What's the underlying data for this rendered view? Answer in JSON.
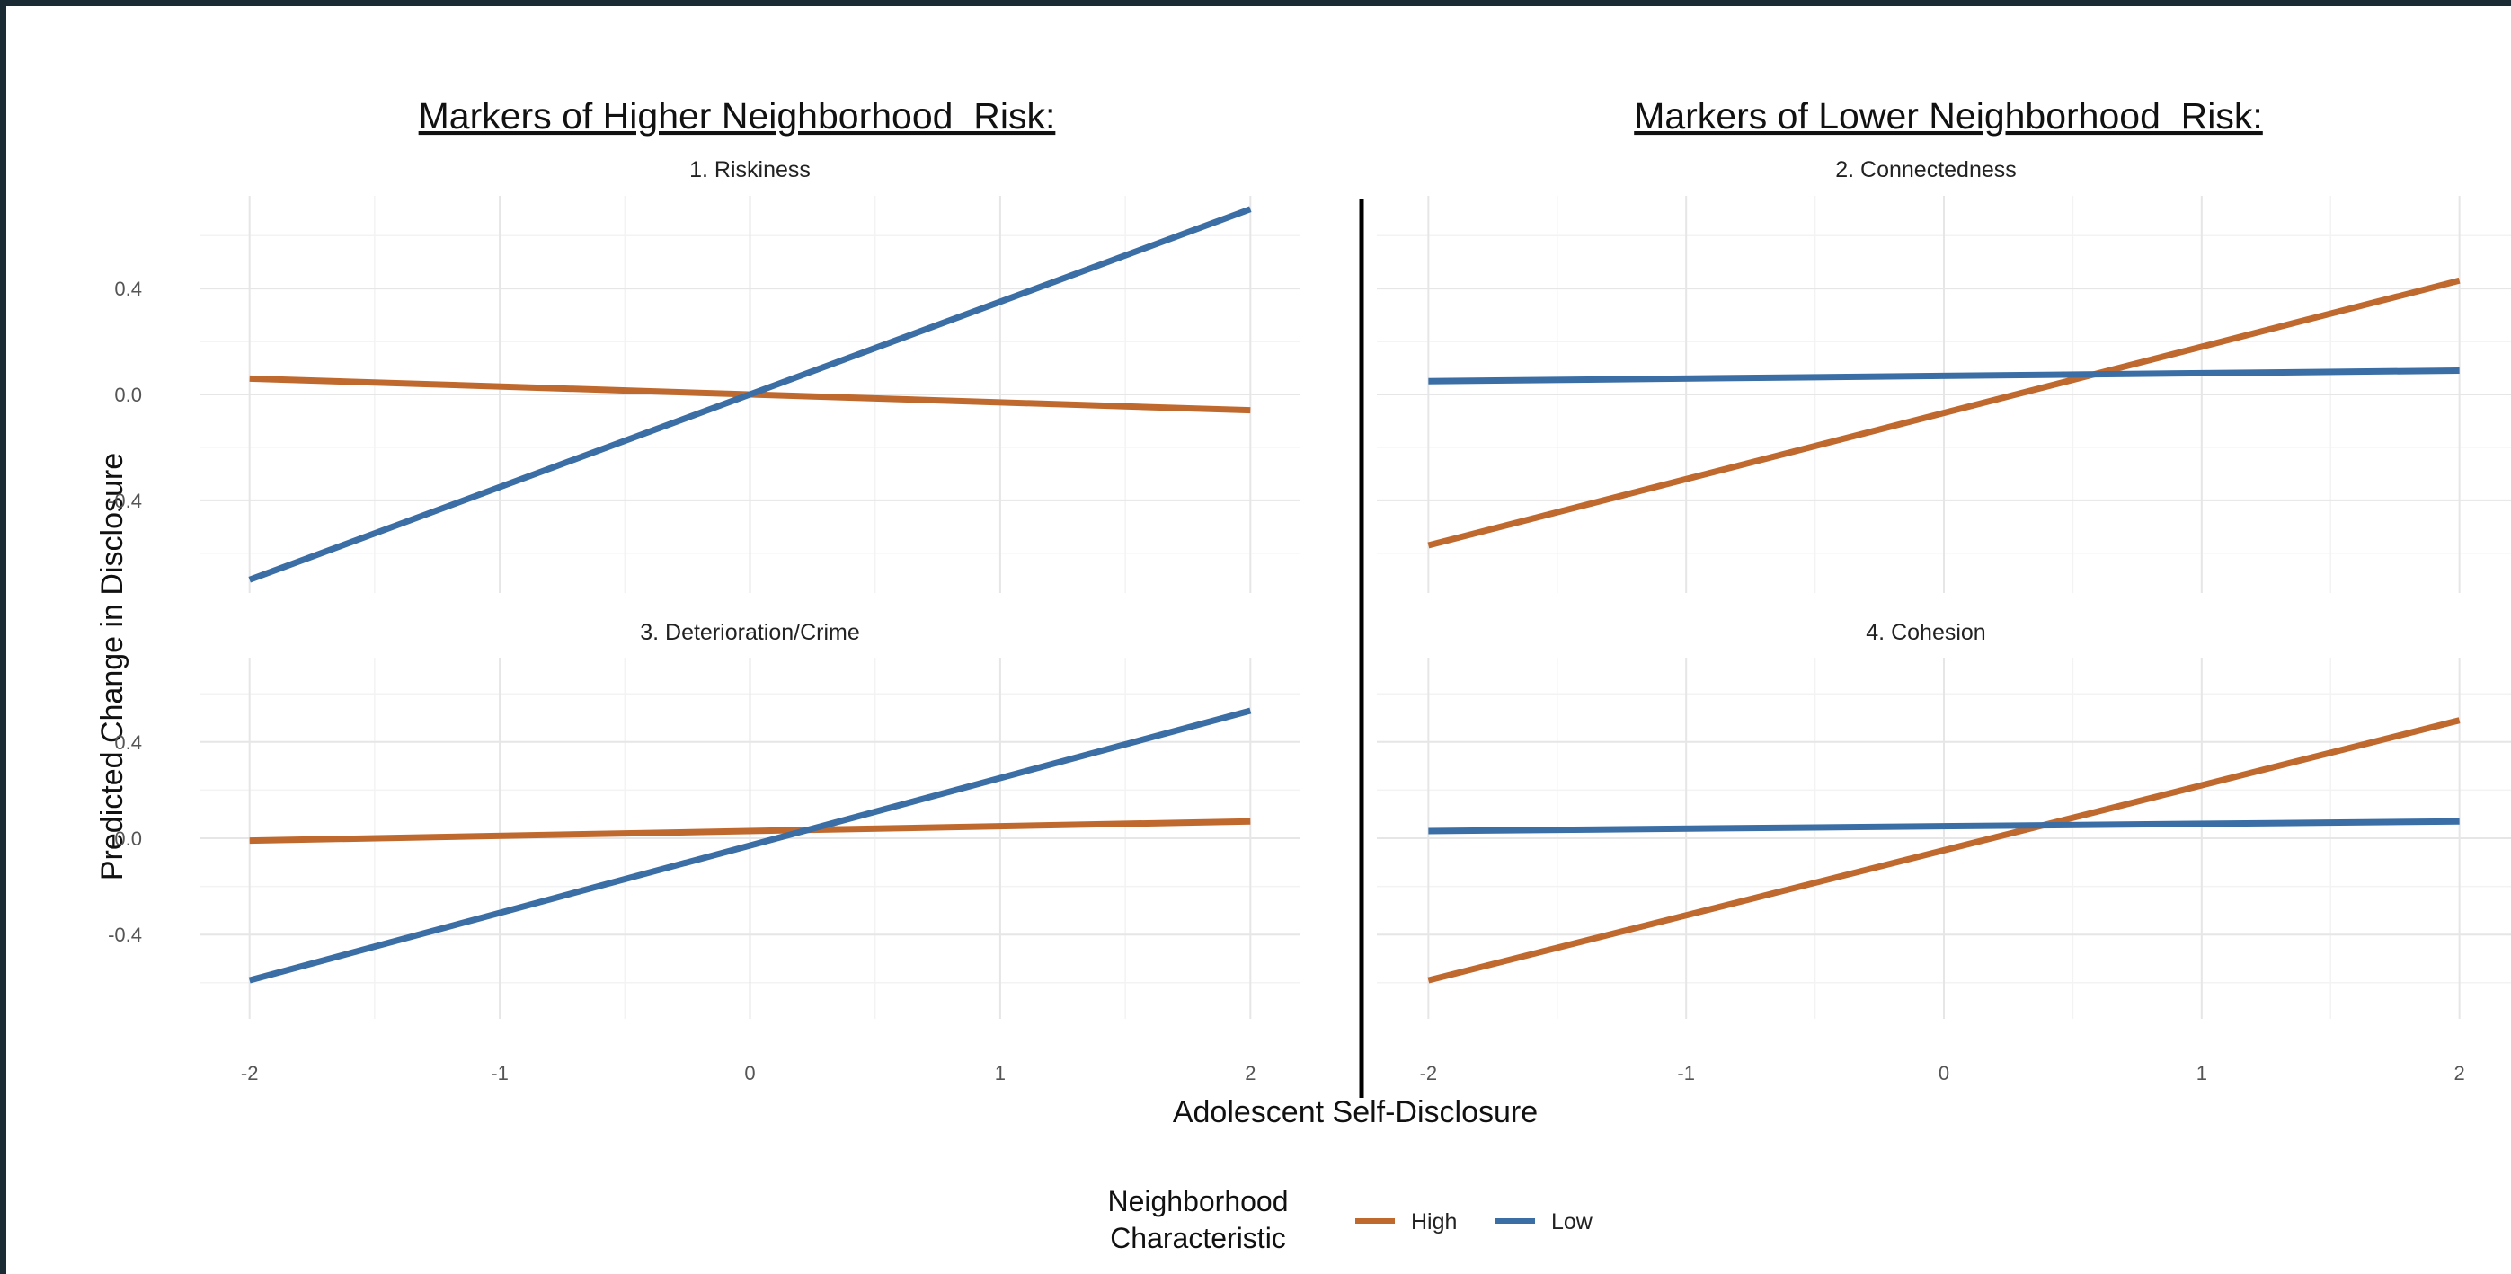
{
  "colors": {
    "High": "#c0692e",
    "Low": "#3a6ea5"
  },
  "group_titles": {
    "left": "Markers of Higher Neighborhood  Risk:",
    "right": "Markers of Lower Neighborhood  Risk:"
  },
  "legend": {
    "title_line1": "Neighborhood",
    "title_line2": "Characteristic",
    "items": [
      "High",
      "Low"
    ]
  },
  "chart_data": [
    {
      "type": "line",
      "title": "1. Riskiness",
      "xlabel": "Adolescent Self-Disclosure",
      "ylabel": "Predicted Change in Disclosure",
      "x": [
        -2,
        2
      ],
      "xticks": [
        -2,
        -1,
        0,
        1,
        2
      ],
      "yticks": [
        -0.4,
        0.0,
        0.4
      ],
      "xlim": [
        -2.2,
        2.2
      ],
      "ylim": [
        -0.75,
        0.75
      ],
      "series": [
        {
          "name": "High",
          "values": [
            0.06,
            -0.06
          ]
        },
        {
          "name": "Low",
          "values": [
            -0.7,
            0.7
          ]
        }
      ]
    },
    {
      "type": "line",
      "title": "2. Connectedness",
      "xlabel": "Adolescent Self-Disclosure",
      "ylabel": "Predicted Change in Disclosure",
      "x": [
        -2,
        2
      ],
      "xticks": [
        -2,
        -1,
        0,
        1,
        2
      ],
      "yticks": [
        -0.4,
        0.0,
        0.4
      ],
      "xlim": [
        -2.2,
        2.2
      ],
      "ylim": [
        -0.75,
        0.75
      ],
      "series": [
        {
          "name": "High",
          "values": [
            -0.57,
            0.43
          ]
        },
        {
          "name": "Low",
          "values": [
            0.05,
            0.09
          ]
        }
      ]
    },
    {
      "type": "line",
      "title": "3. Deterioration/Crime",
      "xlabel": "Adolescent Self-Disclosure",
      "ylabel": "Predicted Change in Disclosure",
      "x": [
        -2,
        2
      ],
      "xticks": [
        -2,
        -1,
        0,
        1,
        2
      ],
      "yticks": [
        -0.4,
        0.0,
        0.4
      ],
      "xlim": [
        -2.2,
        2.2
      ],
      "ylim": [
        -0.75,
        0.75
      ],
      "series": [
        {
          "name": "High",
          "values": [
            -0.01,
            0.07
          ]
        },
        {
          "name": "Low",
          "values": [
            -0.59,
            0.53
          ]
        }
      ]
    },
    {
      "type": "line",
      "title": "4. Cohesion",
      "xlabel": "Adolescent Self-Disclosure",
      "ylabel": "Predicted Change in Disclosure",
      "x": [
        -2,
        2
      ],
      "xticks": [
        -2,
        -1,
        0,
        1,
        2
      ],
      "yticks": [
        -0.4,
        0.0,
        0.4
      ],
      "xlim": [
        -2.2,
        2.2
      ],
      "ylim": [
        -0.75,
        0.75
      ],
      "series": [
        {
          "name": "High",
          "values": [
            -0.59,
            0.49
          ]
        },
        {
          "name": "Low",
          "values": [
            0.03,
            0.07
          ]
        }
      ]
    }
  ]
}
